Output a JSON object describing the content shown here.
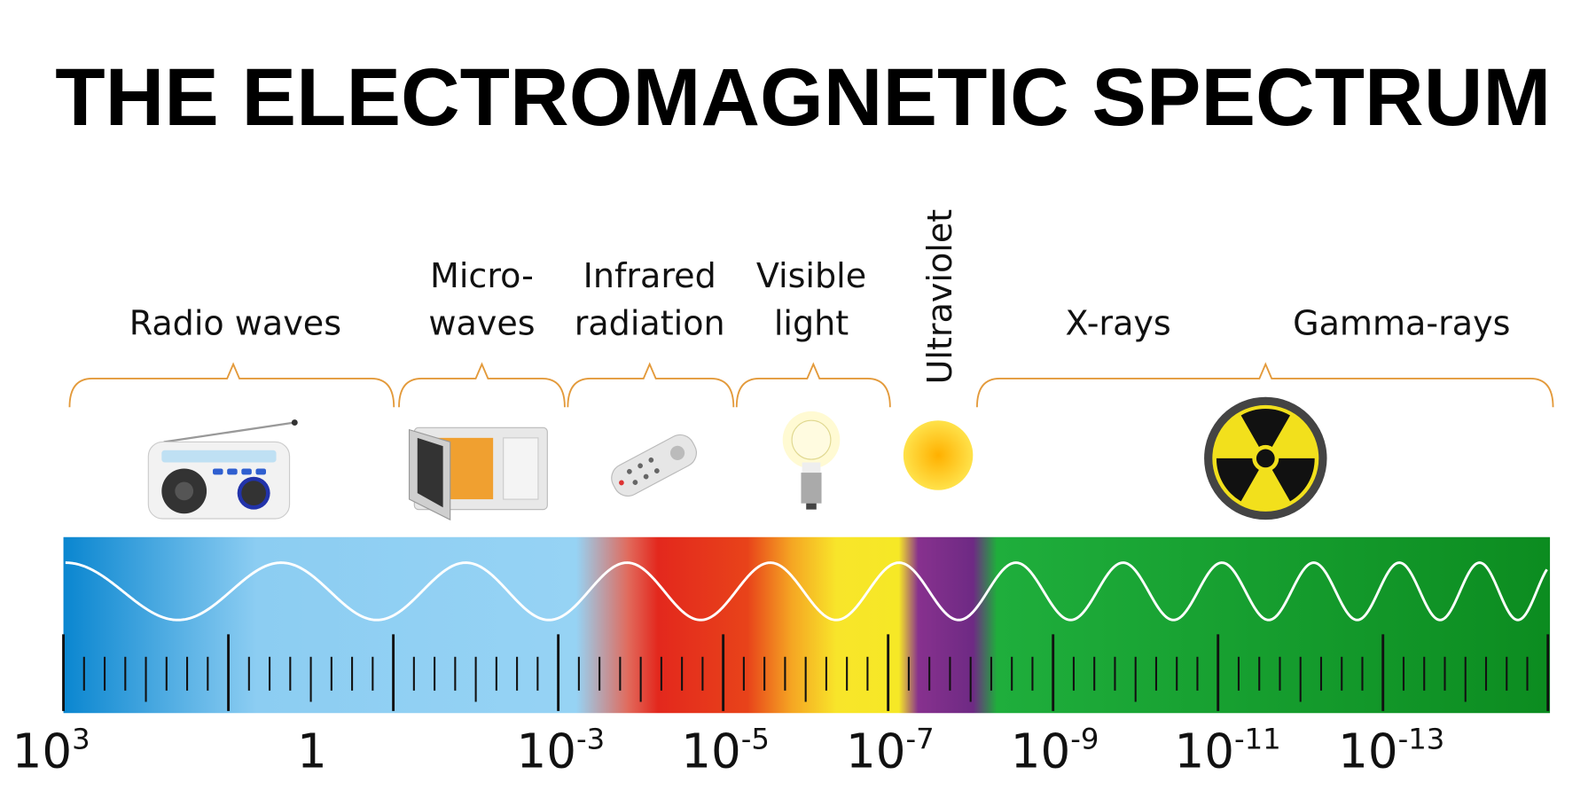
{
  "title": "THE ELECTROMAGNETIC SPECTRUM",
  "bands": [
    {
      "lines": [
        "Radio waves"
      ]
    },
    {
      "lines": [
        "Micro-",
        "waves"
      ]
    },
    {
      "lines": [
        "Infrared",
        "radiation"
      ]
    },
    {
      "lines": [
        "Visible",
        "light"
      ]
    },
    {
      "lines": [
        "Ultraviolet"
      ]
    },
    {
      "lines": [
        "X-rays"
      ]
    },
    {
      "lines": [
        "Gamma-rays"
      ]
    }
  ],
  "scale": [
    {
      "base": "10",
      "exponent": "3"
    },
    {
      "base": "1"
    },
    {
      "base": "10",
      "exponent": "-3"
    },
    {
      "base": "10",
      "exponent": "-5"
    },
    {
      "base": "10",
      "exponent": "-7"
    },
    {
      "base": "10",
      "exponent": "-9"
    },
    {
      "base": "10",
      "exponent": "-11"
    },
    {
      "base": "10",
      "exponent": "-13"
    }
  ]
}
